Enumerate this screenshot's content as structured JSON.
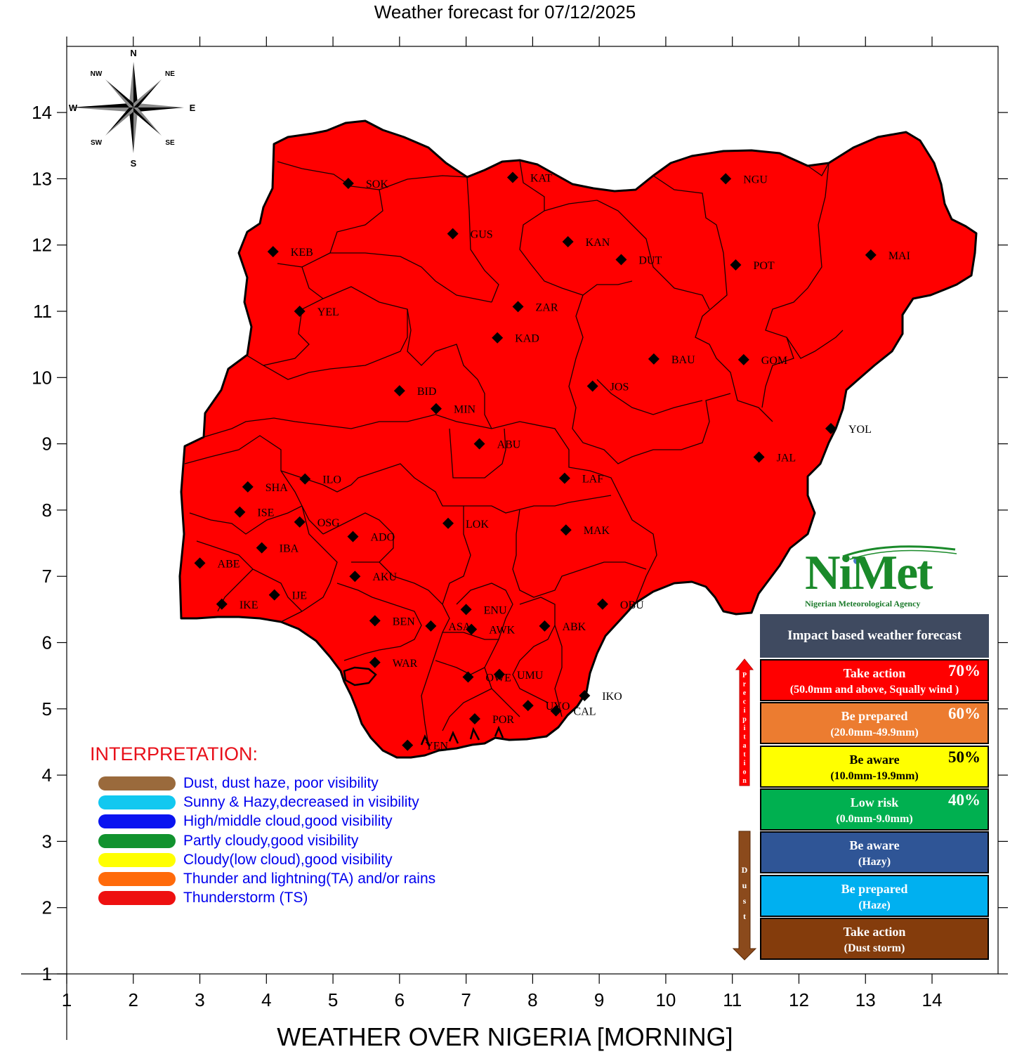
{
  "title": "Weather forecast for 07/12/2025",
  "bottom_title": "WEATHER OVER NIGERIA [MORNING]",
  "axes": {
    "x_ticks": [
      "1",
      "2",
      "3",
      "4",
      "5",
      "6",
      "7",
      "8",
      "9",
      "10",
      "11",
      "12",
      "13",
      "14"
    ],
    "y_ticks": [
      "14",
      "13",
      "12",
      "11",
      "10",
      "9",
      "8",
      "7",
      "6",
      "5",
      "4",
      "3",
      "2",
      "1"
    ]
  },
  "compass": {
    "n": "N",
    "s": "S",
    "e": "E",
    "w": "W",
    "ne": "NE",
    "nw": "NW",
    "se": "SE",
    "sw": "SW"
  },
  "map": {
    "fill_color": "#ff0000",
    "stations": [
      {
        "code": "SOK",
        "lon": 5.23,
        "lat": 12.93
      },
      {
        "code": "KAT",
        "lon": 7.7,
        "lat": 13.02
      },
      {
        "code": "NGU",
        "lon": 10.9,
        "lat": 13.0
      },
      {
        "code": "GUS",
        "lon": 6.8,
        "lat": 12.17
      },
      {
        "code": "KEB",
        "lon": 4.1,
        "lat": 11.9
      },
      {
        "code": "KAN",
        "lon": 8.53,
        "lat": 12.05
      },
      {
        "code": "DUT",
        "lon": 9.33,
        "lat": 11.78
      },
      {
        "code": "POT",
        "lon": 11.05,
        "lat": 11.7
      },
      {
        "code": "MAI",
        "lon": 13.08,
        "lat": 11.85
      },
      {
        "code": "YEL",
        "lon": 4.5,
        "lat": 11.0
      },
      {
        "code": "ZAR",
        "lon": 7.78,
        "lat": 11.07
      },
      {
        "code": "KAD",
        "lon": 7.47,
        "lat": 10.6
      },
      {
        "code": "BAU",
        "lon": 9.82,
        "lat": 10.28
      },
      {
        "code": "GOM",
        "lon": 11.17,
        "lat": 10.27
      },
      {
        "code": "BID",
        "lon": 6.0,
        "lat": 9.8
      },
      {
        "code": "JOS",
        "lon": 8.9,
        "lat": 9.87
      },
      {
        "code": "MIN",
        "lon": 6.55,
        "lat": 9.53
      },
      {
        "code": "YOL",
        "lon": 12.48,
        "lat": 9.23
      },
      {
        "code": "ABU",
        "lon": 7.2,
        "lat": 9.0
      },
      {
        "code": "JAL",
        "lon": 11.4,
        "lat": 8.8
      },
      {
        "code": "SHA",
        "lon": 3.72,
        "lat": 8.35
      },
      {
        "code": "ILO",
        "lon": 4.58,
        "lat": 8.47
      },
      {
        "code": "LAF",
        "lon": 8.48,
        "lat": 8.48
      },
      {
        "code": "ISE",
        "lon": 3.6,
        "lat": 7.97
      },
      {
        "code": "OSG",
        "lon": 4.5,
        "lat": 7.82
      },
      {
        "code": "LOK",
        "lon": 6.73,
        "lat": 7.8
      },
      {
        "code": "MAK",
        "lon": 8.5,
        "lat": 7.7
      },
      {
        "code": "ADO",
        "lon": 5.3,
        "lat": 7.6
      },
      {
        "code": "IBA",
        "lon": 3.93,
        "lat": 7.43
      },
      {
        "code": "ABE",
        "lon": 3.0,
        "lat": 7.2
      },
      {
        "code": "AKU",
        "lon": 5.33,
        "lat": 7.0
      },
      {
        "code": "IJE",
        "lon": 4.12,
        "lat": 6.72
      },
      {
        "code": "IKE",
        "lon": 3.33,
        "lat": 6.58
      },
      {
        "code": "OBU",
        "lon": 9.05,
        "lat": 6.58
      },
      {
        "code": "ENU",
        "lon": 7.0,
        "lat": 6.5
      },
      {
        "code": "BEN",
        "lon": 5.63,
        "lat": 6.33
      },
      {
        "code": "ASA",
        "lon": 6.47,
        "lat": 6.25
      },
      {
        "code": "ABK",
        "lon": 8.18,
        "lat": 6.25
      },
      {
        "code": "AWK",
        "lon": 7.08,
        "lat": 6.2
      },
      {
        "code": "WAR",
        "lon": 5.63,
        "lat": 5.7
      },
      {
        "code": "UMU",
        "lon": 7.5,
        "lat": 5.52
      },
      {
        "code": "OWE",
        "lon": 7.03,
        "lat": 5.48
      },
      {
        "code": "IKO",
        "lon": 8.78,
        "lat": 5.2
      },
      {
        "code": "UYO",
        "lon": 7.93,
        "lat": 5.05
      },
      {
        "code": "CAL",
        "lon": 8.35,
        "lat": 4.97
      },
      {
        "code": "POR",
        "lon": 7.13,
        "lat": 4.85
      },
      {
        "code": "YEN",
        "lon": 6.12,
        "lat": 4.45
      }
    ]
  },
  "interpretation": {
    "heading": "INTERPRETATION:",
    "items": [
      {
        "label": "Dust, dust haze, poor visibility",
        "color": "#9a6a3c"
      },
      {
        "label": "Sunny & Hazy,decreased in visibility",
        "color": "#12c8f0"
      },
      {
        "label": "High/middle cloud,good visibility",
        "color": "#0a14f0"
      },
      {
        "label": "Partly cloudy,good visibility",
        "color": "#11922e"
      },
      {
        "label": "Cloudy(low cloud),good visibility",
        "color": "#ffff00"
      },
      {
        "label": "Thunder and lightning(TA) and/or rains",
        "color": "#ff6a0a"
      },
      {
        "label": "Thunderstorm (TS)",
        "color": "#ee1010"
      }
    ]
  },
  "logo": {
    "name": "NiMet",
    "subtitle": "Nigerian Meteorological Agency"
  },
  "impact_legend": {
    "heading": "Impact based weather forecast",
    "precipitation_label": "Precipitation",
    "dust_label": "Dust",
    "boxes": [
      {
        "line1": "Take action",
        "line2": "(50.0mm and above, Squally wind )",
        "pct": "70%",
        "bg": "#ff0000",
        "fg": "#ffffff"
      },
      {
        "line1": "Be prepared",
        "line2": "(20.0mm-49.9mm)",
        "pct": "60%",
        "bg": "#ec7c30",
        "fg": "#ffffff"
      },
      {
        "line1": "Be aware",
        "line2": "(10.0mm-19.9mm)",
        "pct": "50%",
        "bg": "#ffff00",
        "fg": "#000000"
      },
      {
        "line1": "Low risk",
        "line2": "(0.0mm-9.0mm)",
        "pct": "40%",
        "bg": "#00b050",
        "fg": "#ffffff"
      },
      {
        "line1": "Be aware",
        "line2": "(Hazy)",
        "pct": "",
        "bg": "#2f5596",
        "fg": "#ffffff"
      },
      {
        "line1": "Be prepared",
        "line2": "(Haze)",
        "pct": "",
        "bg": "#00b0f0",
        "fg": "#ffffff"
      },
      {
        "line1": "Take action",
        "line2": "(Dust storm)",
        "pct": "",
        "bg": "#843c0c",
        "fg": "#ffffff"
      }
    ]
  }
}
